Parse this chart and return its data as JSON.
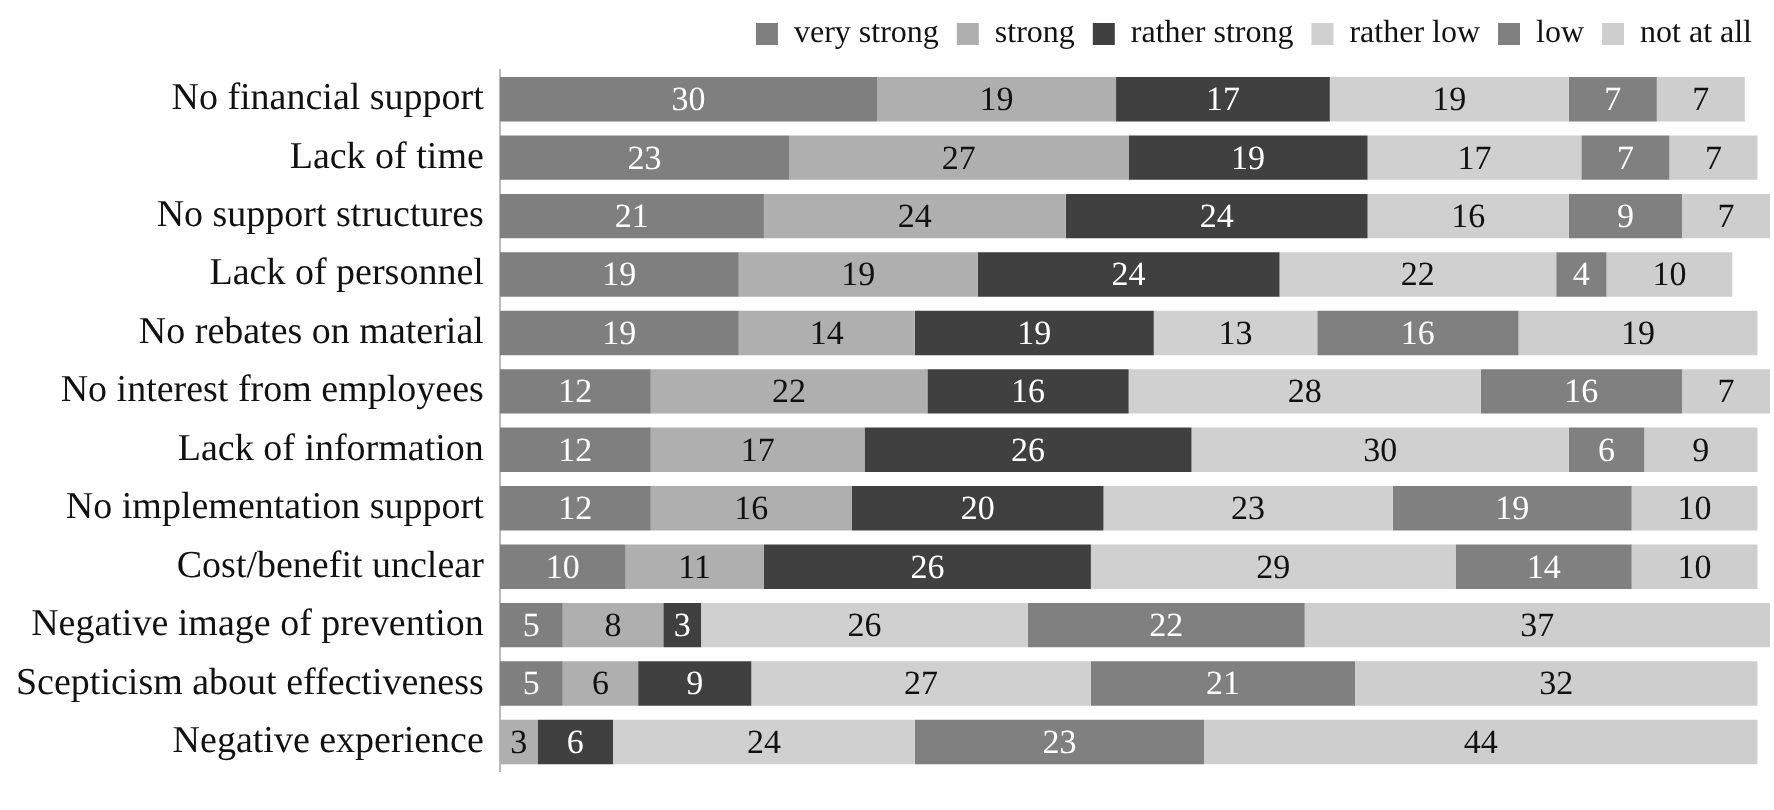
{
  "chart_data": {
    "type": "bar",
    "orientation": "horizontal",
    "stacked": true,
    "data_labels": true,
    "legend": "top right",
    "grid": false,
    "categories": [
      "No financial support",
      "Lack of time",
      "No support structures",
      "Lack of personnel",
      "No rebates on material",
      "No interest from employees",
      "Lack of information",
      "No implementation support",
      "Cost/benefit unclear",
      "Negative image of prevention",
      "Scepticism about effectiveness",
      "Negative experience"
    ],
    "series": [
      {
        "name": "very strong",
        "color": "#7f7f7f",
        "values": [
          30,
          23,
          21,
          19,
          19,
          12,
          12,
          12,
          10,
          5,
          5,
          null
        ]
      },
      {
        "name": "strong",
        "color": "#afafaf",
        "values": [
          19,
          27,
          24,
          19,
          14,
          22,
          17,
          16,
          11,
          8,
          6,
          3
        ]
      },
      {
        "name": "rather strong",
        "color": "#404040",
        "values": [
          17,
          19,
          24,
          24,
          19,
          16,
          26,
          20,
          26,
          3,
          9,
          6
        ]
      },
      {
        "name": "rather low",
        "color": "#d0d0d0",
        "values": [
          19,
          17,
          16,
          22,
          13,
          28,
          30,
          23,
          29,
          26,
          27,
          24
        ]
      },
      {
        "name": "low",
        "color": "#808080",
        "values": [
          7,
          7,
          9,
          4,
          16,
          16,
          6,
          19,
          14,
          22,
          21,
          23
        ]
      },
      {
        "name": "not at all",
        "color": "#cecece",
        "values": [
          7,
          7,
          7,
          10,
          19,
          7,
          9,
          10,
          10,
          37,
          32,
          44
        ]
      }
    ]
  }
}
